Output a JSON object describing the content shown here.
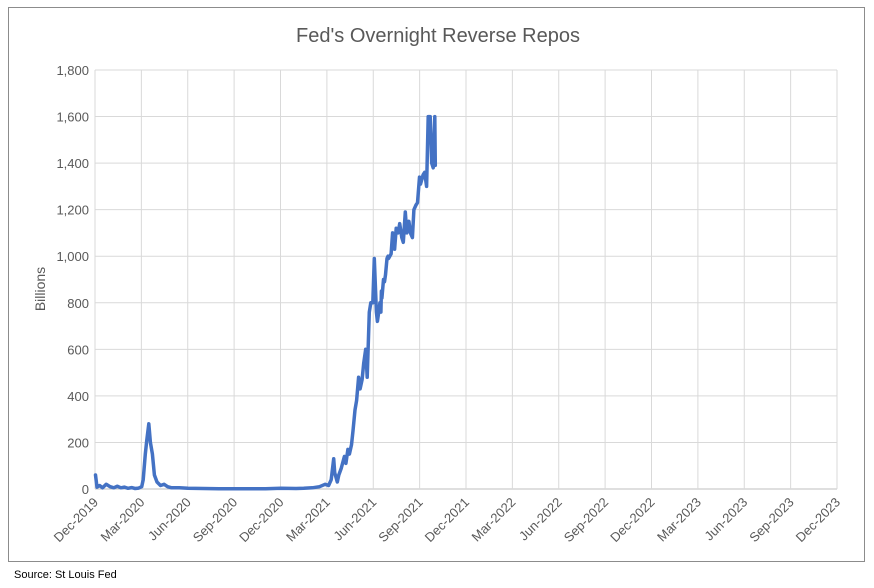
{
  "source_note": "Source: St Louis Fed",
  "chart_data": {
    "type": "line",
    "title": "Fed's Overnight Reverse Repos",
    "xlabel": "",
    "ylabel": "Billions",
    "ylim": [
      0,
      1800
    ],
    "yticks": [
      "0",
      "200",
      "400",
      "600",
      "800",
      "1,000",
      "1,200",
      "1,400",
      "1,600",
      "1,800"
    ],
    "xtick_labels": [
      "Dec-2019",
      "Mar-2020",
      "Jun-2020",
      "Sep-2020",
      "Dec-2020",
      "Mar-2021",
      "Jun-2021",
      "Sep-2021",
      "Dec-2021",
      "Mar-2022",
      "Jun-2022",
      "Sep-2022",
      "Dec-2022",
      "Mar-2023",
      "Jun-2023",
      "Sep-2023",
      "Dec-2023"
    ],
    "xlim": [
      "2019-12-01",
      "2023-12-01"
    ],
    "grid": true,
    "line_color": "#4472c4",
    "grid_color": "#d9d9d9",
    "series": [
      {
        "x": [
          "2019-12-02",
          "2019-12-05",
          "2019-12-10",
          "2019-12-16",
          "2019-12-23",
          "2019-12-31",
          "2020-01-07",
          "2020-01-14",
          "2020-01-21",
          "2020-01-28",
          "2020-02-04",
          "2020-02-11",
          "2020-02-18",
          "2020-02-25",
          "2020-03-02",
          "2020-03-05",
          "2020-03-09",
          "2020-03-12",
          "2020-03-16",
          "2020-03-19",
          "2020-03-23",
          "2020-03-27",
          "2020-04-01",
          "2020-04-08",
          "2020-04-15",
          "2020-04-22",
          "2020-04-30",
          "2020-05-15",
          "2020-06-01",
          "2020-07-01",
          "2020-08-01",
          "2020-09-01",
          "2020-10-01",
          "2020-11-01",
          "2020-12-01",
          "2020-12-31",
          "2021-01-15",
          "2021-02-01",
          "2021-02-15",
          "2021-02-26",
          "2021-03-05",
          "2021-03-10",
          "2021-03-15",
          "2021-03-17",
          "2021-03-22",
          "2021-03-25",
          "2021-03-30",
          "2021-04-05",
          "2021-04-08",
          "2021-04-12",
          "2021-04-15",
          "2021-04-19",
          "2021-04-22",
          "2021-04-26",
          "2021-04-29",
          "2021-05-03",
          "2021-05-06",
          "2021-05-10",
          "2021-05-13",
          "2021-05-17",
          "2021-05-20",
          "2021-05-24",
          "2021-05-27",
          "2021-05-31",
          "2021-06-03",
          "2021-06-07",
          "2021-06-09",
          "2021-06-11",
          "2021-06-14",
          "2021-06-16",
          "2021-06-17",
          "2021-06-18",
          "2021-06-21",
          "2021-06-23",
          "2021-06-25",
          "2021-06-28",
          "2021-06-30",
          "2021-07-01",
          "2021-07-06",
          "2021-07-09",
          "2021-07-13",
          "2021-07-16",
          "2021-07-20",
          "2021-07-23",
          "2021-07-27",
          "2021-07-30",
          "2021-08-03",
          "2021-08-06",
          "2021-08-10",
          "2021-08-13",
          "2021-08-17",
          "2021-08-20",
          "2021-08-24",
          "2021-08-27",
          "2021-08-31",
          "2021-09-02",
          "2021-09-07",
          "2021-09-10",
          "2021-09-14",
          "2021-09-17",
          "2021-09-21",
          "2021-09-24",
          "2021-09-27",
          "2021-09-30",
          "2021-10-01"
        ],
        "y": [
          60,
          8,
          15,
          5,
          20,
          10,
          5,
          12,
          5,
          8,
          3,
          6,
          2,
          4,
          10,
          40,
          150,
          210,
          280,
          200,
          150,
          60,
          30,
          15,
          20,
          10,
          5,
          5,
          3,
          2,
          1,
          1,
          1,
          1,
          3,
          2,
          3,
          5,
          10,
          20,
          15,
          40,
          130,
          70,
          30,
          60,
          90,
          140,
          110,
          170,
          150,
          190,
          250,
          340,
          380,
          480,
          430,
          470,
          540,
          600,
          480,
          760,
          800,
          800,
          990,
          760,
          720,
          750,
          800,
          760,
          850,
          820,
          900,
          890,
          920,
          990,
          1000,
          990,
          1010,
          1100,
          1030,
          1120,
          1100,
          1140,
          1080,
          1060,
          1190,
          1100,
          1150,
          1100,
          1080,
          1200,
          1220,
          1230,
          1340,
          1310,
          1350,
          1360,
          1300,
          1600,
          1600,
          1400,
          1380,
          1600,
          1390
        ]
      }
    ]
  }
}
